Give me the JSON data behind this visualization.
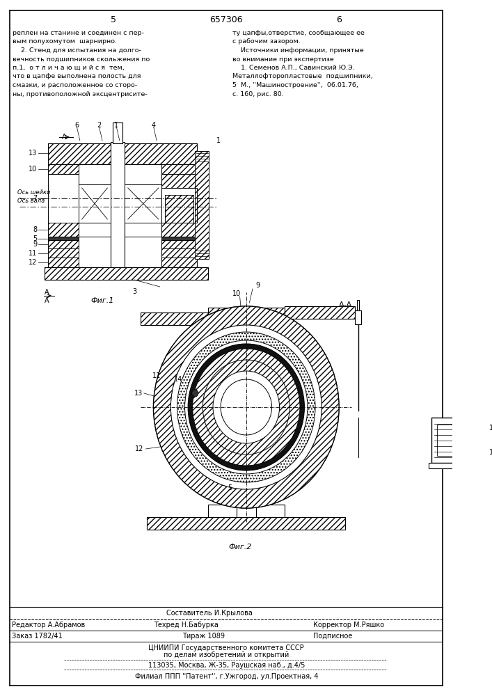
{
  "bg_color": "#f5f5f0",
  "page_color": "#ffffff",
  "title_number": "657306",
  "page_left": "5",
  "page_right": "6",
  "text_col1_top": "реплен на станине и соединен с пер-\nвым полухомутом  шарнирно.\n    2. Стенд для испытания на долго-\nвечность подшипников скольжения по\nп.1,  о т л и ч а ю щ и й с я  тем,\nчто в цапфе выполнена полость для\nсмазки, и расположенное со сторо-\nны, противоположной эксцентрисите-",
  "text_col2_top": "ту цапфы,отверстие, сообщающее ее\nс рабочим зазором.\n    Источники информации, принятые\nво внимание при экспертизе\n    1. Семенов А.П., Савинский Ю.Э.\nМеталлофторопластовые  подшипники,\n5  М., ''Машиностроение'',  06.01.76,\nс. 160, рис. 80.",
  "fig1_label": "Фиг.1",
  "fig2_label": "Фиг.2",
  "section_label": "А-А",
  "footer_line1": "Составитель И.Крылова",
  "footer_line2_left": "Редактор А.Абрамов",
  "footer_line2_mid": "Техред Н.Бабурка",
  "footer_line2_right": "Корректор М.Ряшко",
  "footer_line3_left": "Заказ 1782/41",
  "footer_line3_mid": "Тираж 1089",
  "footer_line3_right": "Подписное",
  "footer_line4": "ЦНИИПИ Государственного комитета СССР",
  "footer_line5": "по делам изобретений и открытий",
  "footer_line6": "113035, Москва, Ж-35, Раушская наб., д.4/5",
  "footer_line7": "Филиал ППП ''Патент'', г.Ужгород, ул.Проектная, 4"
}
